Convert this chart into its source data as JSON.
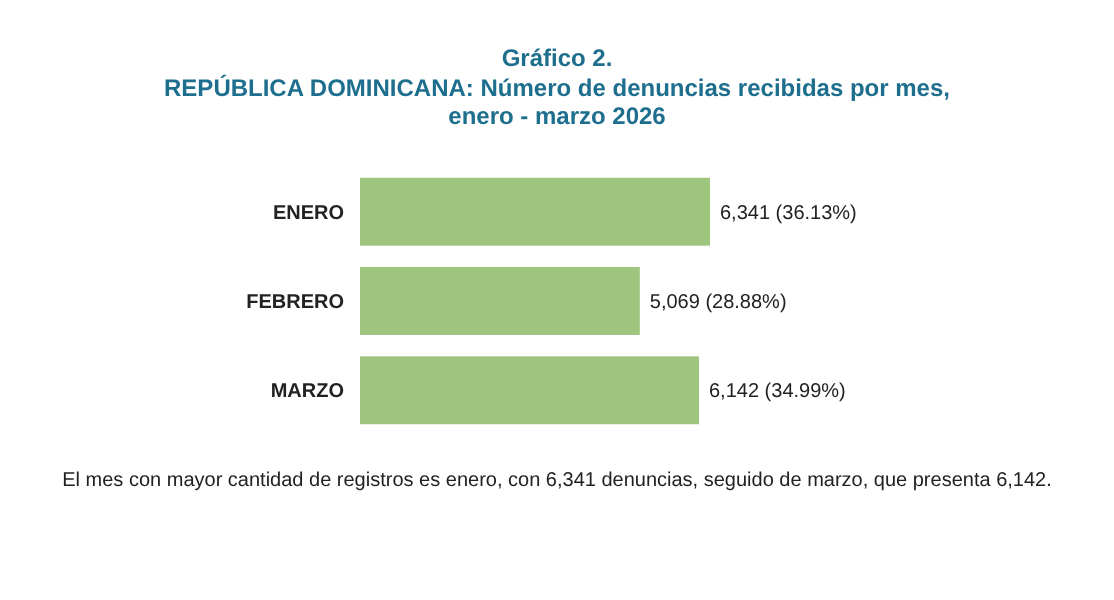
{
  "chart_data": {
    "type": "bar",
    "orientation": "horizontal",
    "title": "Gráfico 2.",
    "subtitle": "REPÚBLICA DOMINICANA: Número de denuncias recibidas por mes, enero - marzo 2026",
    "categories": [
      "ENERO",
      "FEBRERO",
      "MARZO"
    ],
    "values": [
      6341,
      5069,
      6142
    ],
    "value_labels": [
      "6,341 (36.13%)",
      "5,069 (28.88%)",
      "6,142 (34.99%)"
    ],
    "color": "#9dc57d",
    "annotations": [
      "El mes con mayor cantidad de registros es enero, con 6,341 denuncias, seguido de marzo, que presenta 6,142."
    ]
  }
}
